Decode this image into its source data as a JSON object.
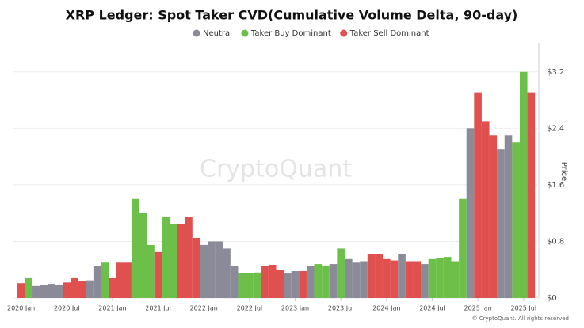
{
  "chart_data": {
    "type": "bar",
    "title": "XRP Ledger: Spot Taker CVD(Cumulative Volume Delta, 90-day)",
    "y_axis_label": "Price",
    "watermark": "CryptoQuant",
    "footer": "© CryptoQuant. All rights reserved",
    "x": [
      "2020-01",
      "2020-02",
      "2020-03",
      "2020-04",
      "2020-05",
      "2020-06",
      "2020-07",
      "2020-08",
      "2020-09",
      "2020-10",
      "2020-11",
      "2020-12",
      "2021-01",
      "2021-02",
      "2021-03",
      "2021-04",
      "2021-05",
      "2021-06",
      "2021-07",
      "2021-08",
      "2021-09",
      "2021-10",
      "2021-11",
      "2021-12",
      "2022-01",
      "2022-02",
      "2022-03",
      "2022-04",
      "2022-05",
      "2022-06",
      "2022-07",
      "2022-08",
      "2022-09",
      "2022-10",
      "2022-11",
      "2022-12",
      "2023-01",
      "2023-02",
      "2023-03",
      "2023-04",
      "2023-05",
      "2023-06",
      "2023-07",
      "2023-08",
      "2023-09",
      "2023-10",
      "2023-11",
      "2023-12",
      "2024-01",
      "2024-02",
      "2024-03",
      "2024-04",
      "2024-05",
      "2024-06",
      "2024-07",
      "2024-08",
      "2024-09",
      "2024-10",
      "2024-11",
      "2024-12",
      "2025-01",
      "2025-02",
      "2025-03",
      "2025-04",
      "2025-05",
      "2025-06",
      "2025-07",
      "2025-08"
    ],
    "series": [
      {
        "name": "Neutral",
        "color": "#8b8a99",
        "values": [
          null,
          null,
          0.17,
          0.19,
          0.2,
          0.19,
          null,
          null,
          null,
          0.25,
          0.45,
          null,
          null,
          null,
          null,
          null,
          null,
          null,
          null,
          null,
          null,
          null,
          null,
          null,
          0.75,
          0.8,
          0.8,
          0.7,
          0.45,
          null,
          null,
          null,
          null,
          null,
          null,
          0.35,
          0.38,
          null,
          0.45,
          null,
          null,
          0.48,
          null,
          0.55,
          0.5,
          0.52,
          null,
          null,
          null,
          null,
          0.62,
          null,
          null,
          0.48,
          null,
          null,
          null,
          null,
          null,
          2.4,
          null,
          null,
          null,
          2.1,
          2.3,
          null,
          null,
          null
        ]
      },
      {
        "name": "Taker Buy Dominant",
        "color": "#6cc04a",
        "values": [
          null,
          0.28,
          null,
          null,
          null,
          null,
          null,
          null,
          null,
          null,
          null,
          0.5,
          null,
          null,
          null,
          1.4,
          1.2,
          0.75,
          null,
          1.15,
          1.05,
          null,
          null,
          null,
          null,
          null,
          null,
          null,
          null,
          0.35,
          0.35,
          0.36,
          null,
          null,
          null,
          null,
          null,
          null,
          null,
          0.48,
          0.46,
          null,
          0.7,
          null,
          null,
          null,
          null,
          null,
          null,
          null,
          null,
          null,
          null,
          null,
          0.55,
          0.57,
          0.58,
          0.52,
          1.4,
          null,
          null,
          null,
          null,
          null,
          null,
          2.2,
          3.2,
          null
        ]
      },
      {
        "name": "Taker Sell Dominant",
        "color": "#e0504f",
        "values": [
          0.21,
          null,
          null,
          null,
          null,
          null,
          0.22,
          0.28,
          0.24,
          null,
          null,
          null,
          0.28,
          0.5,
          0.5,
          null,
          null,
          null,
          0.65,
          null,
          null,
          1.05,
          1.15,
          0.85,
          null,
          null,
          null,
          null,
          null,
          null,
          null,
          null,
          0.45,
          0.47,
          0.4,
          null,
          null,
          0.38,
          null,
          null,
          null,
          null,
          null,
          null,
          null,
          null,
          0.62,
          0.62,
          0.55,
          0.53,
          null,
          0.52,
          0.52,
          null,
          null,
          null,
          null,
          null,
          null,
          null,
          2.9,
          2.5,
          2.3,
          null,
          null,
          null,
          null,
          2.9
        ]
      }
    ],
    "xlim": [
      "2019-12",
      "2025-09"
    ],
    "xticks": [
      {
        "value": "2020-01",
        "label": "2020 Jan"
      },
      {
        "value": "2020-07",
        "label": "2020 Jul"
      },
      {
        "value": "2021-01",
        "label": "2021 Jan"
      },
      {
        "value": "2021-07",
        "label": "2021 Jul"
      },
      {
        "value": "2022-01",
        "label": "2022 Jan"
      },
      {
        "value": "2022-07",
        "label": "2022 Jul"
      },
      {
        "value": "2023-01",
        "label": "2023 Jan"
      },
      {
        "value": "2023-07",
        "label": "2023 Jul"
      },
      {
        "value": "2024-01",
        "label": "2024 Jan"
      },
      {
        "value": "2024-07",
        "label": "2024 Jul"
      },
      {
        "value": "2025-01",
        "label": "2025 Jan"
      },
      {
        "value": "2025-07",
        "label": "2025 Jul"
      }
    ],
    "ylim": [
      0,
      3.6
    ],
    "yticks": [
      {
        "value": 0,
        "label": "$0"
      },
      {
        "value": 0.8,
        "label": "$0.8"
      },
      {
        "value": 1.6,
        "label": "$1.6"
      },
      {
        "value": 2.4,
        "label": "$2.4"
      },
      {
        "value": 3.2,
        "label": "$3.2"
      }
    ],
    "grid": true
  }
}
